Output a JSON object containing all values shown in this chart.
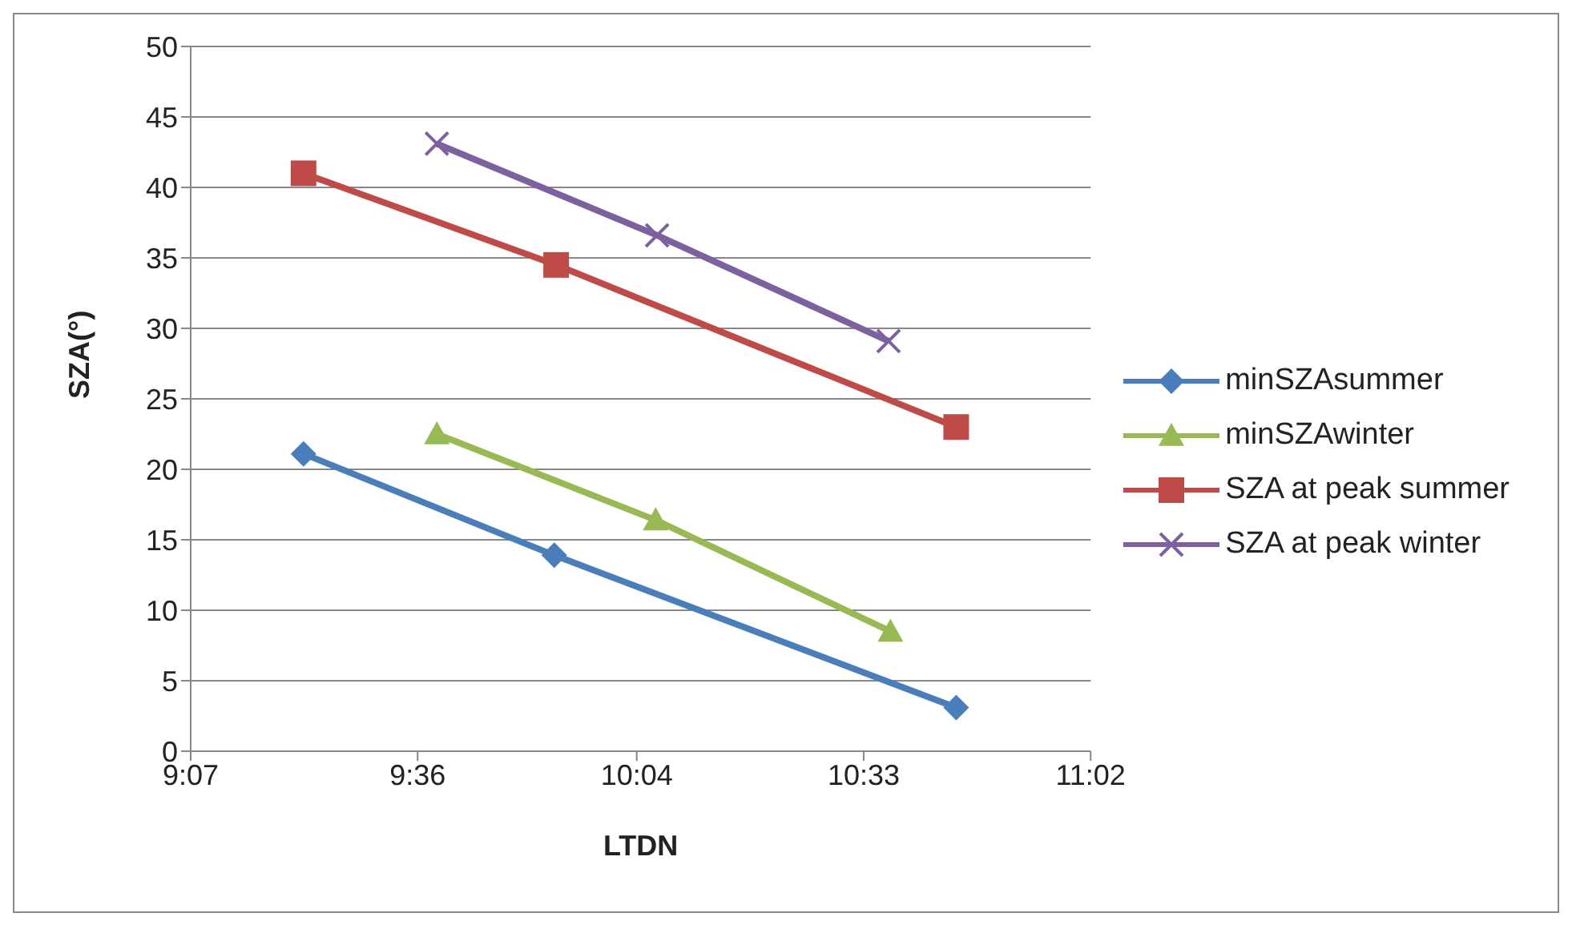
{
  "chart_data": {
    "type": "line",
    "xlabel": "LTDN",
    "ylabel": "SZA(°)",
    "xlim": [
      9.1167,
      11.0333
    ],
    "xticks": [
      {
        "value": 9.1167,
        "label": "9:07"
      },
      {
        "value": 9.6,
        "label": "9:36"
      },
      {
        "value": 10.0667,
        "label": "10:04"
      },
      {
        "value": 10.55,
        "label": "10:33"
      },
      {
        "value": 11.0333,
        "label": "11:02"
      }
    ],
    "ylim": [
      0,
      50
    ],
    "yticks": [
      0,
      5,
      10,
      15,
      20,
      25,
      30,
      35,
      40,
      45,
      50
    ],
    "grid": "y",
    "legend": "right",
    "series": [
      {
        "name": "minSZAsummer",
        "color": "#4a7ebb",
        "marker": "diamond",
        "x": [
          9.357,
          9.891,
          10.747
        ],
        "values": [
          21.1,
          13.9,
          3.1
        ]
      },
      {
        "name": "minSZAwinter",
        "color": "#98b954",
        "marker": "triangle",
        "x": [
          9.641,
          10.107,
          10.607
        ],
        "values": [
          22.5,
          16.4,
          8.5
        ]
      },
      {
        "name": "SZA at peak summer",
        "color": "#be4b48",
        "marker": "square",
        "x": [
          9.357,
          9.895,
          10.747
        ],
        "values": [
          41,
          34.5,
          23
        ]
      },
      {
        "name": "SZA at peak winter",
        "color": "#7d60a0",
        "marker": "cross",
        "x": [
          9.641,
          10.11,
          10.603
        ],
        "values": [
          43.1,
          36.6,
          29.1
        ]
      }
    ]
  }
}
